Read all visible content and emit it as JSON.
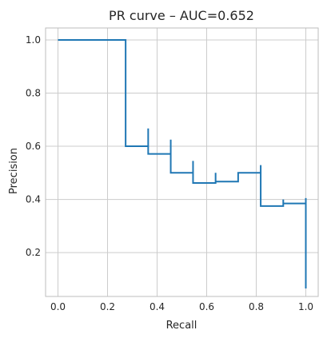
{
  "chart_data": {
    "type": "line",
    "title": "PR curve – AUC=0.652",
    "xlabel": "Recall",
    "ylabel": "Precision",
    "xlim": [
      -0.05,
      1.05
    ],
    "ylim": [
      0.035,
      1.045
    ],
    "xticks": [
      "0.0",
      "0.2",
      "0.4",
      "0.6",
      "0.8",
      "1.0"
    ],
    "yticks": [
      "0.2",
      "0.4",
      "0.6",
      "0.8",
      "1.0"
    ],
    "grid": true,
    "series": [
      {
        "color": "#1f77b4",
        "drawstyle": "steps-post",
        "recall": [
          0.0,
          0.273,
          0.273,
          0.364,
          0.364,
          0.455,
          0.455,
          0.545,
          0.545,
          0.636,
          0.636,
          0.727,
          0.818,
          0.818,
          0.909,
          0.909,
          1.0,
          1.0
        ],
        "precision": [
          1.0,
          1.0,
          0.6,
          0.667,
          0.571,
          0.625,
          0.5,
          0.545,
          0.462,
          0.5,
          0.467,
          0.5,
          0.529,
          0.375,
          0.4,
          0.385,
          0.405,
          0.065
        ]
      }
    ]
  }
}
